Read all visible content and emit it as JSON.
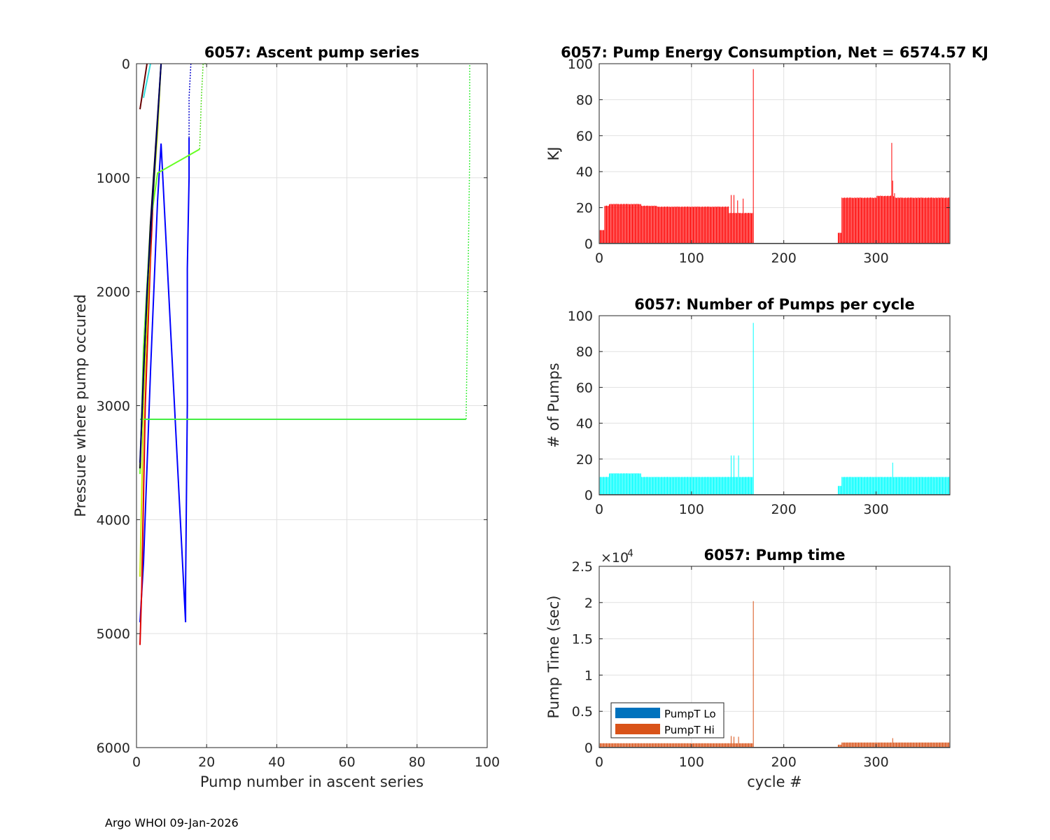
{
  "footer": "Argo WHOI 09-Jan-2026",
  "colors": {
    "energy": "#ff0000",
    "pumps": "#00ffff",
    "pumpt_lo": "#0072bd",
    "pumpt_hi": "#d95319",
    "grid": "#e1e1e1",
    "axis": "#262626"
  },
  "chart_data": [
    {
      "id": "ascent",
      "type": "line",
      "title": "6057: Ascent pump series",
      "xlabel": "Pump number in ascent series",
      "ylabel": "Pressure where pump occured",
      "xlim": [
        0,
        100
      ],
      "ylim": [
        0,
        6000
      ],
      "y_reversed": true,
      "xticks": [
        0,
        20,
        40,
        60,
        80,
        100
      ],
      "yticks": [
        0,
        1000,
        2000,
        3000,
        4000,
        5000,
        6000
      ],
      "grid": true,
      "series": [
        {
          "name": "deep blue",
          "color": "#0000ff",
          "values": [
            [
              1,
              4900
            ],
            [
              2,
              4380
            ],
            [
              4,
              2700
            ],
            [
              6,
              1200
            ],
            [
              7,
              700
            ],
            [
              14,
              4900
            ],
            [
              14,
              4600
            ],
            [
              14.5,
              3000
            ],
            [
              14.5,
              1800
            ],
            [
              15,
              1000
            ],
            [
              15,
              650
            ]
          ]
        },
        {
          "name": "blue dotted",
          "color": "#0000cc",
          "dashed": true,
          "values": [
            [
              15,
              650
            ],
            [
              15,
              300
            ],
            [
              15.5,
              0
            ]
          ]
        },
        {
          "name": "red",
          "color": "#dd0000",
          "values": [
            [
              1,
              5100
            ],
            [
              1.5,
              4600
            ],
            [
              2.5,
              3000
            ],
            [
              4,
              1700
            ],
            [
              5,
              1000
            ],
            [
              5.5,
              700
            ]
          ]
        },
        {
          "name": "green long",
          "color": "#44ee44",
          "values": [
            [
              1,
              3120
            ],
            [
              94,
              3120
            ]
          ]
        },
        {
          "name": "green long dotted",
          "color": "#44ee44",
          "dashed": true,
          "values": [
            [
              94,
              3120
            ],
            [
              95,
              800
            ],
            [
              95,
              0
            ]
          ]
        },
        {
          "name": "lime",
          "color": "#66ff22",
          "values": [
            [
              1,
              3600
            ],
            [
              2,
              2500
            ],
            [
              4,
              1400
            ],
            [
              6,
              960
            ],
            [
              18,
              750
            ]
          ]
        },
        {
          "name": "lime dotted",
          "color": "#55dd22",
          "dashed": true,
          "values": [
            [
              18,
              750
            ],
            [
              18.5,
              300
            ],
            [
              19,
              0
            ],
            [
              20,
              0
            ]
          ]
        },
        {
          "name": "yellow green",
          "color": "#ccee00",
          "values": [
            [
              1,
              4500
            ],
            [
              2,
              3000
            ],
            [
              4,
              1500
            ],
            [
              6,
              600
            ],
            [
              7,
              0
            ]
          ]
        },
        {
          "name": "black",
          "color": "#000000",
          "values": [
            [
              1,
              3550
            ],
            [
              2,
              2700
            ],
            [
              4,
              1400
            ],
            [
              5.5,
              700
            ],
            [
              7,
              0
            ]
          ]
        },
        {
          "name": "navy",
          "color": "#000066",
          "values": [
            [
              1,
              3500
            ],
            [
              3,
              2000
            ],
            [
              5,
              1000
            ],
            [
              7,
              0
            ]
          ]
        },
        {
          "name": "cyan",
          "color": "#33dddd",
          "values": [
            [
              2,
              300
            ],
            [
              3,
              150
            ],
            [
              4,
              0
            ]
          ]
        },
        {
          "name": "dark red",
          "color": "#660000",
          "values": [
            [
              1,
              400
            ],
            [
              2,
              200
            ],
            [
              3,
              0
            ]
          ]
        }
      ]
    },
    {
      "id": "energy",
      "type": "bar",
      "title": "6057: Pump Energy Consumption,  Net = 6574.57 KJ",
      "xlabel": "",
      "ylabel": "KJ",
      "xlim": [
        0,
        380
      ],
      "ylim": [
        0,
        100
      ],
      "xticks": [
        0,
        100,
        200,
        300
      ],
      "yticks": [
        0,
        20,
        40,
        60,
        80,
        100
      ],
      "grid": true,
      "segments": [
        {
          "from": 1,
          "to": 5,
          "value": 7.5
        },
        {
          "from": 6,
          "to": 10,
          "value": 21
        },
        {
          "from": 11,
          "to": 45,
          "value": 22
        },
        {
          "from": 46,
          "to": 62,
          "value": 21
        },
        {
          "from": 63,
          "to": 140,
          "value": 20.5
        },
        {
          "from": 141,
          "to": 166,
          "value": 17
        },
        {
          "from": 167,
          "to": 258,
          "value": 0
        },
        {
          "from": 259,
          "to": 262,
          "value": 6
        },
        {
          "from": 263,
          "to": 300,
          "value": 25.5
        },
        {
          "from": 301,
          "to": 320,
          "value": 26.5
        },
        {
          "from": 321,
          "to": 380,
          "value": 25.5
        }
      ],
      "spikes": [
        [
          143,
          27
        ],
        [
          146,
          27
        ],
        [
          150,
          24
        ],
        [
          156,
          25
        ],
        [
          167,
          97
        ],
        [
          317,
          56
        ],
        [
          318,
          35
        ],
        [
          320,
          28
        ]
      ]
    },
    {
      "id": "pumps",
      "type": "bar",
      "title": "6057: Number of Pumps per cycle",
      "xlabel": "",
      "ylabel": "# of Pumps",
      "xlim": [
        0,
        380
      ],
      "ylim": [
        0,
        100
      ],
      "xticks": [
        0,
        100,
        200,
        300
      ],
      "yticks": [
        0,
        20,
        40,
        60,
        80,
        100
      ],
      "grid": true,
      "segments": [
        {
          "from": 1,
          "to": 10,
          "value": 10
        },
        {
          "from": 11,
          "to": 45,
          "value": 12
        },
        {
          "from": 46,
          "to": 90,
          "value": 10
        },
        {
          "from": 91,
          "to": 166,
          "value": 10
        },
        {
          "from": 167,
          "to": 258,
          "value": 0
        },
        {
          "from": 259,
          "to": 262,
          "value": 5
        },
        {
          "from": 263,
          "to": 380,
          "value": 10
        }
      ],
      "spikes": [
        [
          143,
          22
        ],
        [
          146,
          22
        ],
        [
          151,
          22
        ],
        [
          167,
          96
        ],
        [
          318,
          18
        ]
      ]
    },
    {
      "id": "pumptime",
      "type": "bar",
      "title": "6057: Pump time",
      "xlabel": "cycle #",
      "ylabel": "Pump Time (sec)",
      "y_exponent": "×10^4",
      "xlim": [
        0,
        380
      ],
      "ylim": [
        0,
        2.5
      ],
      "xticks": [
        0,
        100,
        200,
        300
      ],
      "yticks": [
        0,
        0.5,
        1,
        1.5,
        2,
        2.5
      ],
      "grid": true,
      "legend": {
        "position": "bottom-left",
        "entries": [
          "PumpT Lo",
          "PumpT Hi"
        ]
      },
      "segments": [
        {
          "from": 1,
          "to": 166,
          "value": 0.06
        },
        {
          "from": 167,
          "to": 258,
          "value": 0
        },
        {
          "from": 259,
          "to": 262,
          "value": 0.04
        },
        {
          "from": 263,
          "to": 380,
          "value": 0.07
        }
      ],
      "spikes": [
        [
          143,
          0.16
        ],
        [
          146,
          0.15
        ],
        [
          151,
          0.15
        ],
        [
          167,
          2.02
        ],
        [
          318,
          0.13
        ]
      ]
    }
  ]
}
